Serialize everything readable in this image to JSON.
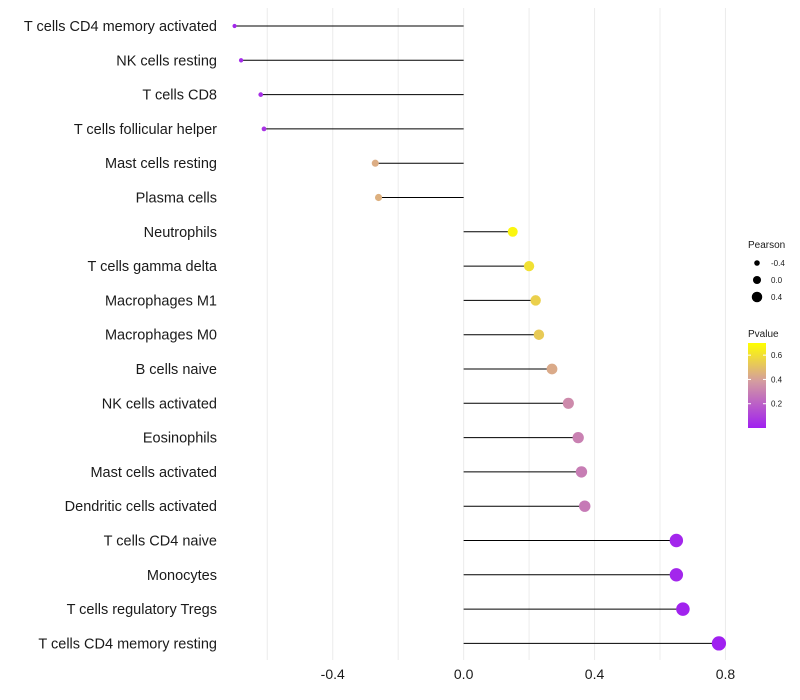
{
  "chart_data": {
    "type": "lollipop",
    "orientation": "horizontal",
    "categories": [
      "T cells CD4 memory activated",
      "NK cells resting",
      "T cells CD8",
      "T cells follicular helper",
      "Mast cells resting",
      "Plasma cells",
      "Neutrophils",
      "T cells gamma delta",
      "Macrophages M1",
      "Macrophages M0",
      "B cells naive",
      "NK cells activated",
      "Eosinophils",
      "Mast cells activated",
      "Dendritic cells activated",
      "T cells CD4 naive",
      "Monocytes",
      "T cells regulatory  Tregs",
      "T cells CD4 memory resting"
    ],
    "pearson": [
      -0.7,
      -0.68,
      -0.62,
      -0.61,
      -0.27,
      -0.26,
      0.15,
      0.2,
      0.22,
      0.23,
      0.27,
      0.32,
      0.35,
      0.36,
      0.37,
      0.65,
      0.65,
      0.67,
      0.78
    ],
    "pvalue": [
      0.02,
      0.03,
      0.05,
      0.06,
      0.44,
      0.45,
      0.67,
      0.6,
      0.55,
      0.53,
      0.43,
      0.33,
      0.3,
      0.29,
      0.28,
      0.02,
      0.02,
      0.01,
      0.0
    ],
    "xlim": [
      -0.72,
      0.82
    ],
    "xticks": [
      -0.4,
      0.0,
      0.4,
      0.8
    ],
    "xtick_labels": [
      "-0.4",
      "0.0",
      "0.4",
      "0.8"
    ],
    "size_legend": {
      "title": "Pearson",
      "values": [
        -0.4,
        0.0,
        0.4
      ],
      "labels": [
        "-0.4",
        "0.0",
        "0.4"
      ]
    },
    "color_legend": {
      "title": "Pvalue",
      "range": [
        0.0,
        0.7
      ],
      "ticks": [
        0.2,
        0.4,
        0.6
      ],
      "labels": [
        "0.2",
        "0.4",
        "0.6"
      ],
      "low_color": "#a020f0",
      "mid_color": "#d49ca0",
      "high_color": "#ffff00"
    },
    "legend_position": "right",
    "grid": true
  },
  "colors": {
    "grid": "#ececec",
    "stem": "#000000",
    "text": "#1a1a1a"
  }
}
